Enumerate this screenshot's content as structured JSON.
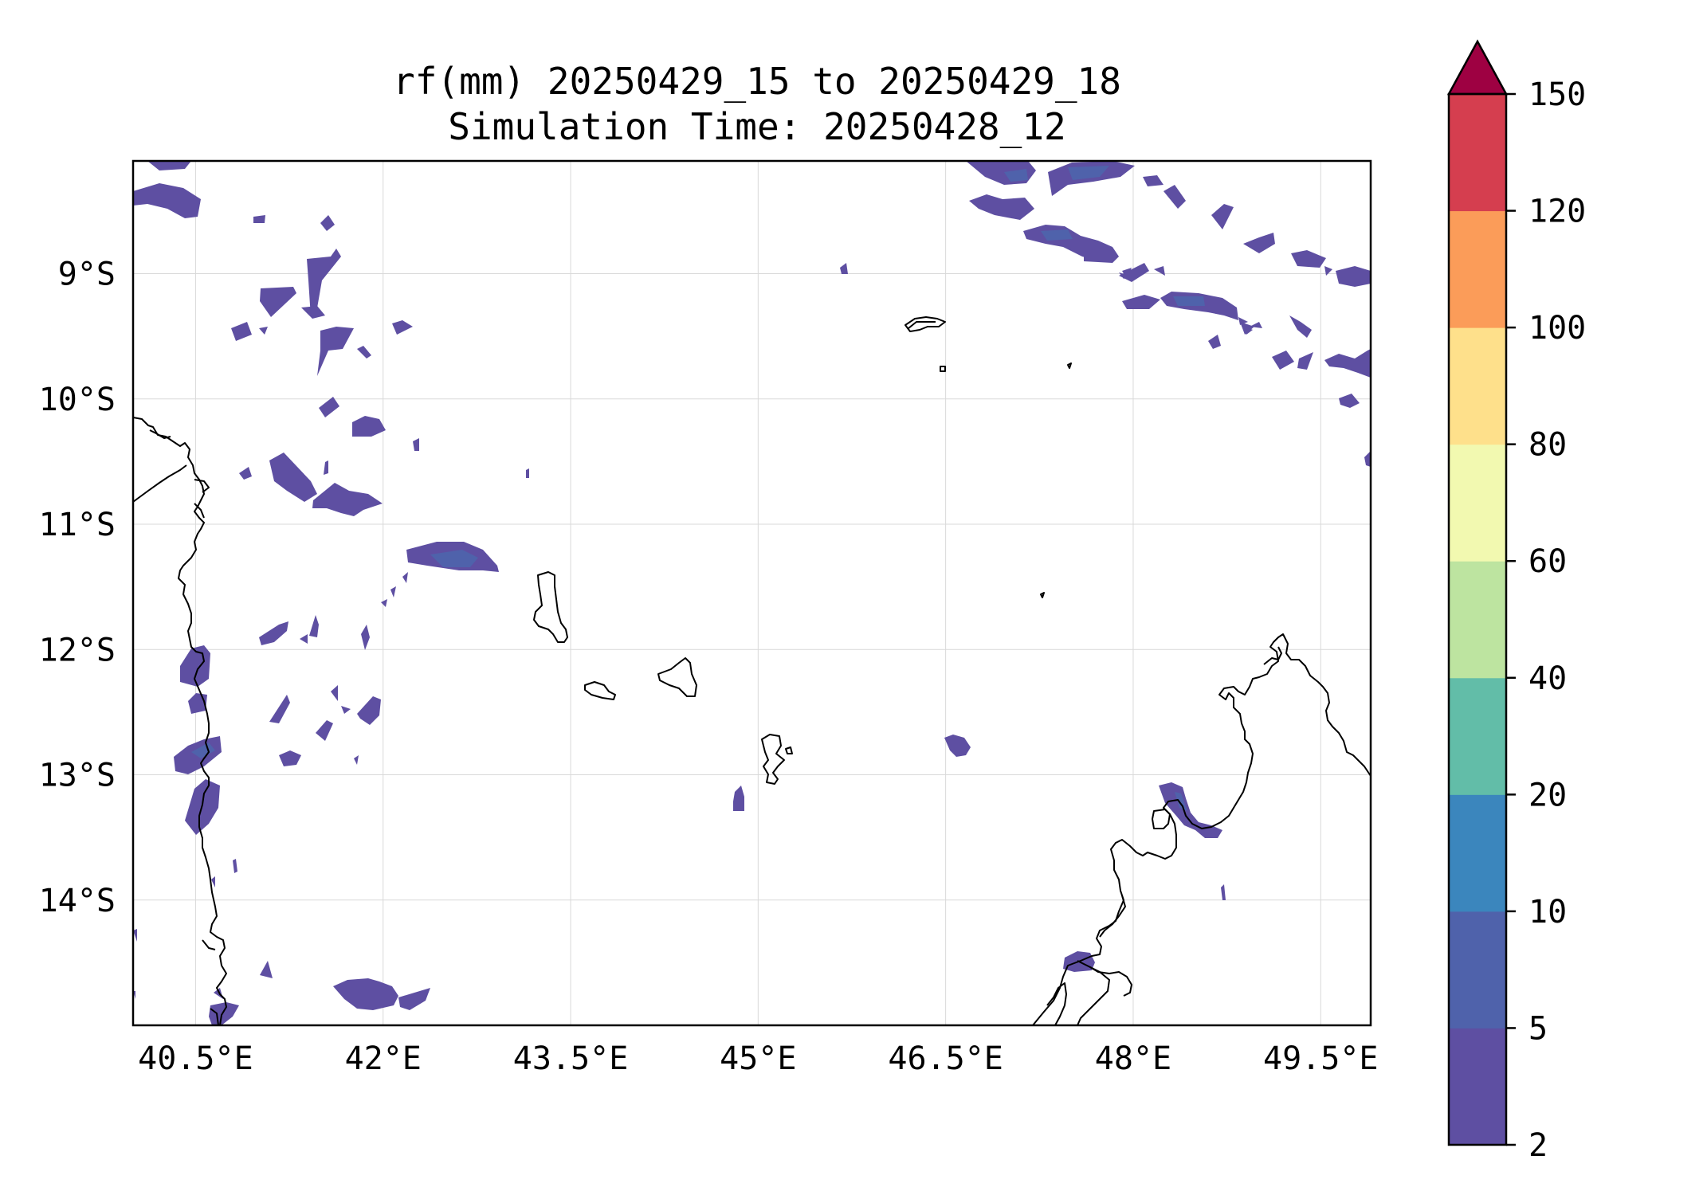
{
  "title": {
    "line1": "rf(mm) 20250429_15 to 20250429_18",
    "line2": "Simulation Time: 20250428_12"
  },
  "map": {
    "lon_range": [
      40.0,
      49.9
    ],
    "lat_range": [
      -15.0,
      -8.1
    ],
    "x_ticks": [
      {
        "value": 40.5,
        "label": "40.5°E"
      },
      {
        "value": 42.0,
        "label": "42°E"
      },
      {
        "value": 43.5,
        "label": "43.5°E"
      },
      {
        "value": 45.0,
        "label": "45°E"
      },
      {
        "value": 46.5,
        "label": "46.5°E"
      },
      {
        "value": 48.0,
        "label": "48°E"
      },
      {
        "value": 49.5,
        "label": "49.5°E"
      }
    ],
    "y_ticks": [
      {
        "value": -9,
        "label": "9°S"
      },
      {
        "value": -10,
        "label": "10°S"
      },
      {
        "value": -11,
        "label": "11°S"
      },
      {
        "value": -12,
        "label": "12°S"
      },
      {
        "value": -13,
        "label": "13°S"
      },
      {
        "value": -14,
        "label": "14°S"
      }
    ],
    "grid": true,
    "rain_color": "#5e4fa2",
    "rain_color_light": "#4f62ab"
  },
  "colorbar": {
    "levels": [
      "2",
      "5",
      "10",
      "20",
      "40",
      "60",
      "80",
      "100",
      "120",
      "150"
    ],
    "colors": [
      "#5e4fa2",
      "#4f62ab",
      "#3b86bd",
      "#62bda8",
      "#bde4a0",
      "#f2f9b0",
      "#fee08b",
      "#fb9c59",
      "#d53e4f"
    ],
    "extend_color": "#9e0142",
    "extend": "max"
  }
}
